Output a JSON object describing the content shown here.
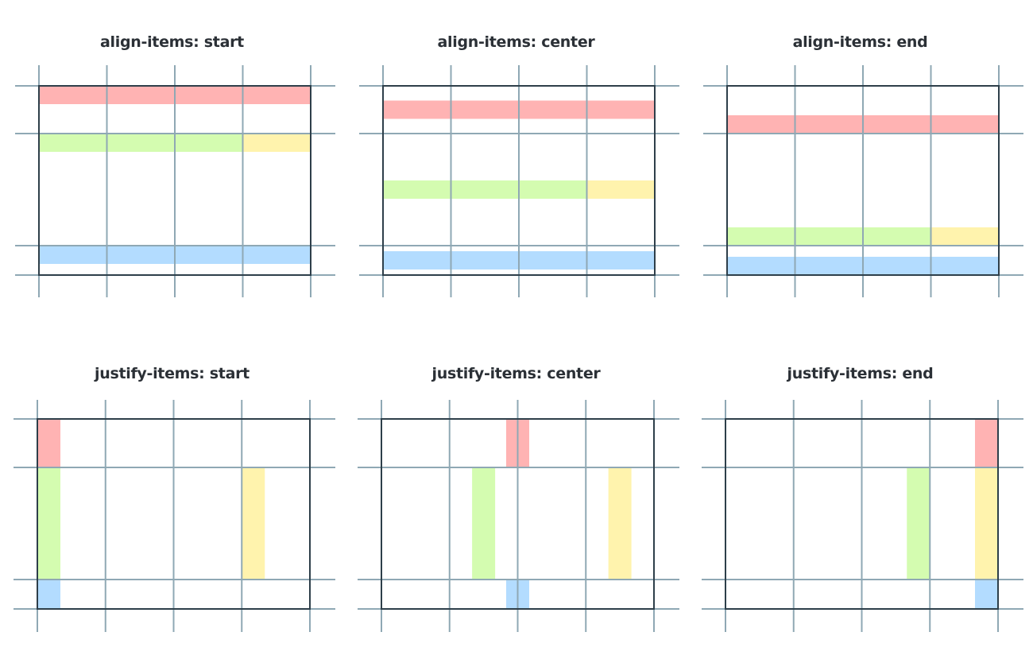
{
  "colors": {
    "grid_line": "#8fa8b4",
    "container_border": "#2e3f4a",
    "title": "#2b3036",
    "item_red": "#ffb3b3",
    "item_green": "#d4fcb0",
    "item_yellow": "#fff3ad",
    "item_blue": "#b3dcff"
  },
  "panels": [
    {
      "id": "align-start",
      "title": "align-items: start",
      "property": "align",
      "alignment": "start"
    },
    {
      "id": "align-center",
      "title": "align-items: center",
      "property": "align",
      "alignment": "center"
    },
    {
      "id": "align-end",
      "title": "align-items: end",
      "property": "align",
      "alignment": "end"
    },
    {
      "id": "justify-start",
      "title": "justify-items: start",
      "property": "justify",
      "alignment": "start"
    },
    {
      "id": "justify-center",
      "title": "justify-items: center",
      "property": "justify",
      "alignment": "center"
    },
    {
      "id": "justify-end",
      "title": "justify-items: end",
      "property": "justify",
      "alignment": "end"
    }
  ],
  "grid": {
    "columns": 4,
    "rows": 3,
    "items": [
      {
        "name": "red",
        "color": "item_red",
        "col_start": 1,
        "col_span": 4,
        "row": 1
      },
      {
        "name": "green",
        "color": "item_green",
        "col_start": 1,
        "col_span": 3,
        "row": 2
      },
      {
        "name": "yellow",
        "color": "item_yellow",
        "col_start": 4,
        "col_span": 1,
        "row": 2
      },
      {
        "name": "blue",
        "color": "item_blue",
        "col_start": 1,
        "col_span": 4,
        "row": 3
      }
    ]
  }
}
